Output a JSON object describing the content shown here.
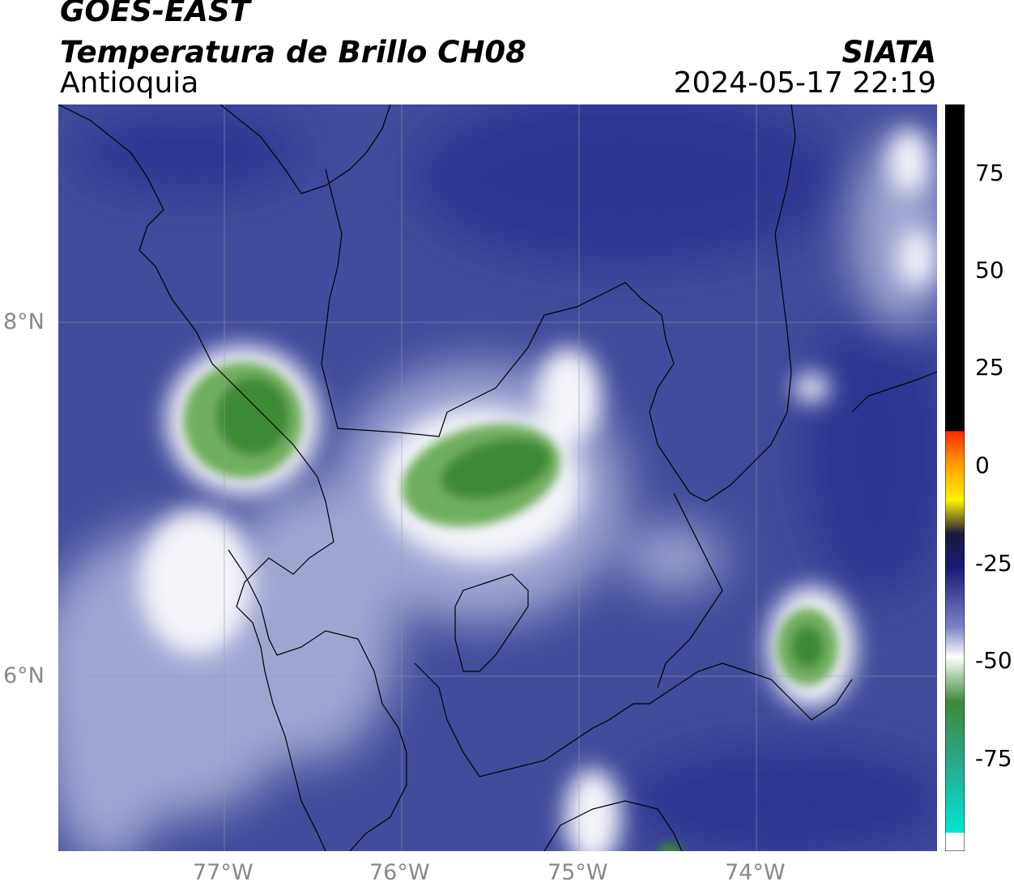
{
  "header": {
    "satellite": "GOES-EAST",
    "product": "Temperatura de Brillo CH08",
    "region": "Antioquia",
    "organization": "SIATA",
    "datetime": "2024-05-17 22:19"
  },
  "map": {
    "lat_ticks": [
      "8°N",
      "6°N"
    ],
    "lon_ticks": [
      "77°W",
      "76°W",
      "75°W",
      "74°W"
    ],
    "background_color": "#434c9c"
  },
  "colorbar": {
    "ticks": [
      "75",
      "50",
      "25",
      "0",
      "-25",
      "-50",
      "-75"
    ],
    "colors": {
      "black": "#000000",
      "red": "#ff2a00",
      "orange": "#ff9900",
      "yellow": "#fff200",
      "dark_navy": "#1a1a78",
      "blue": "#3a4aa8",
      "white": "#ffffff",
      "green": "#2e8b2e",
      "cyan": "#00e6d6"
    }
  }
}
